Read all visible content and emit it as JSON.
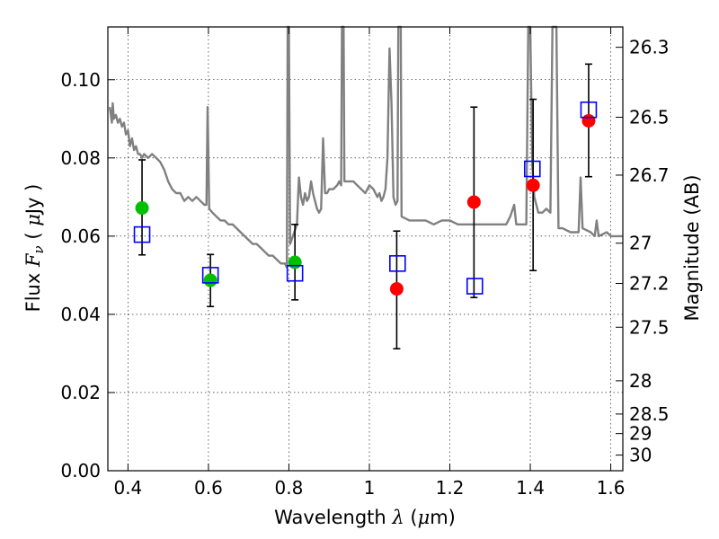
{
  "chart_data": {
    "type": "scatter",
    "title": "",
    "xlabel_parts": [
      "Wavelength  ",
      "λ",
      " (",
      "μ",
      "m)"
    ],
    "ylabel_parts": [
      "Flux  ",
      "F",
      "ν",
      "  ( ",
      "μ",
      "Jy )"
    ],
    "y2label": "Magnitude (AB)",
    "xlim": [
      0.35,
      1.63
    ],
    "ylim": [
      0.0,
      0.1135
    ],
    "xticks": [
      0.4,
      0.6,
      0.8,
      1.0,
      1.2,
      1.4,
      1.6
    ],
    "xtick_labels": [
      "0.4",
      "0.6",
      "0.8",
      "1",
      "1.2",
      "1.4",
      "1.6"
    ],
    "yticks": [
      0.0,
      0.02,
      0.04,
      0.06,
      0.08,
      0.1
    ],
    "ytick_labels": [
      "0.00",
      "0.02",
      "0.04",
      "0.06",
      "0.08",
      "0.10"
    ],
    "y2ticks": [
      {
        "flux": 0.1083,
        "label": "26.3"
      },
      {
        "flux": 0.0904,
        "label": "26.5"
      },
      {
        "flux": 0.0756,
        "label": "26.7"
      },
      {
        "flux": 0.0582,
        "label": "27"
      },
      {
        "flux": 0.0479,
        "label": "27.2"
      },
      {
        "flux": 0.0367,
        "label": "27.5"
      },
      {
        "flux": 0.023,
        "label": "28"
      },
      {
        "flux": 0.0145,
        "label": "28.5"
      },
      {
        "flux": 0.0095,
        "label": "29"
      },
      {
        "flux": 0.004,
        "label": "30"
      }
    ],
    "grid": true,
    "grid_style": "dotted",
    "model_spectrum": {
      "color": "#808080",
      "points": [
        [
          0.355,
          0.093
        ],
        [
          0.36,
          0.089
        ],
        [
          0.362,
          0.094
        ],
        [
          0.365,
          0.09
        ],
        [
          0.37,
          0.091
        ],
        [
          0.375,
          0.089
        ],
        [
          0.38,
          0.09
        ],
        [
          0.385,
          0.088
        ],
        [
          0.39,
          0.089
        ],
        [
          0.395,
          0.086
        ],
        [
          0.4,
          0.087
        ],
        [
          0.405,
          0.083
        ],
        [
          0.41,
          0.085
        ],
        [
          0.415,
          0.082
        ],
        [
          0.42,
          0.083
        ],
        [
          0.425,
          0.081
        ],
        [
          0.43,
          0.081
        ],
        [
          0.435,
          0.08
        ],
        [
          0.44,
          0.081
        ],
        [
          0.45,
          0.08
        ],
        [
          0.46,
          0.081
        ],
        [
          0.47,
          0.08
        ],
        [
          0.48,
          0.079
        ],
        [
          0.49,
          0.077
        ],
        [
          0.5,
          0.074
        ],
        [
          0.51,
          0.072
        ],
        [
          0.52,
          0.071
        ],
        [
          0.53,
          0.071
        ],
        [
          0.54,
          0.069
        ],
        [
          0.55,
          0.07
        ],
        [
          0.56,
          0.069
        ],
        [
          0.57,
          0.07
        ],
        [
          0.58,
          0.069
        ],
        [
          0.59,
          0.068
        ],
        [
          0.595,
          0.068
        ],
        [
          0.598,
          0.093
        ],
        [
          0.602,
          0.067
        ],
        [
          0.61,
          0.066
        ],
        [
          0.62,
          0.065
        ],
        [
          0.63,
          0.064
        ],
        [
          0.64,
          0.064
        ],
        [
          0.65,
          0.063
        ],
        [
          0.66,
          0.063
        ],
        [
          0.67,
          0.062
        ],
        [
          0.68,
          0.061
        ],
        [
          0.69,
          0.06
        ],
        [
          0.7,
          0.059
        ],
        [
          0.71,
          0.058
        ],
        [
          0.72,
          0.058
        ],
        [
          0.73,
          0.057
        ],
        [
          0.74,
          0.056
        ],
        [
          0.75,
          0.055
        ],
        [
          0.76,
          0.055
        ],
        [
          0.77,
          0.054
        ],
        [
          0.78,
          0.053
        ],
        [
          0.79,
          0.053
        ],
        [
          0.795,
          0.052
        ],
        [
          0.797,
          0.1135
        ],
        [
          0.8,
          0.1135
        ],
        [
          0.803,
          0.058
        ],
        [
          0.81,
          0.06
        ],
        [
          0.82,
          0.063
        ],
        [
          0.825,
          0.075
        ],
        [
          0.83,
          0.07
        ],
        [
          0.835,
          0.068
        ],
        [
          0.84,
          0.071
        ],
        [
          0.845,
          0.069
        ],
        [
          0.85,
          0.07
        ],
        [
          0.855,
          0.074
        ],
        [
          0.86,
          0.071
        ],
        [
          0.865,
          0.069
        ],
        [
          0.87,
          0.067
        ],
        [
          0.875,
          0.066
        ],
        [
          0.88,
          0.067
        ],
        [
          0.885,
          0.085
        ],
        [
          0.89,
          0.071
        ],
        [
          0.895,
          0.071
        ],
        [
          0.9,
          0.072
        ],
        [
          0.91,
          0.072
        ],
        [
          0.92,
          0.073
        ],
        [
          0.925,
          0.074
        ],
        [
          0.93,
          0.073
        ],
        [
          0.932,
          0.1135
        ],
        [
          0.936,
          0.1135
        ],
        [
          0.938,
          0.074
        ],
        [
          0.95,
          0.074
        ],
        [
          0.96,
          0.074
        ],
        [
          0.97,
          0.073
        ],
        [
          0.98,
          0.072
        ],
        [
          0.99,
          0.071
        ],
        [
          1.0,
          0.073
        ],
        [
          1.01,
          0.072
        ],
        [
          1.02,
          0.07
        ],
        [
          1.025,
          0.071
        ],
        [
          1.03,
          0.069
        ],
        [
          1.035,
          0.07
        ],
        [
          1.04,
          0.072
        ],
        [
          1.045,
          0.08
        ],
        [
          1.05,
          0.108
        ],
        [
          1.055,
          0.094
        ],
        [
          1.06,
          0.07
        ],
        [
          1.065,
          0.068
        ],
        [
          1.07,
          0.069
        ],
        [
          1.072,
          0.1135
        ],
        [
          1.078,
          0.1135
        ],
        [
          1.08,
          0.065
        ],
        [
          1.1,
          0.064
        ],
        [
          1.12,
          0.064
        ],
        [
          1.14,
          0.064
        ],
        [
          1.16,
          0.063
        ],
        [
          1.18,
          0.064
        ],
        [
          1.2,
          0.064
        ],
        [
          1.22,
          0.063
        ],
        [
          1.24,
          0.063
        ],
        [
          1.26,
          0.063
        ],
        [
          1.28,
          0.063
        ],
        [
          1.3,
          0.063
        ],
        [
          1.32,
          0.063
        ],
        [
          1.34,
          0.063
        ],
        [
          1.35,
          0.065
        ],
        [
          1.36,
          0.068
        ],
        [
          1.365,
          0.063
        ],
        [
          1.38,
          0.063
        ],
        [
          1.39,
          0.063
        ],
        [
          1.395,
          0.1135
        ],
        [
          1.4,
          0.1135
        ],
        [
          1.405,
          0.078
        ],
        [
          1.41,
          0.07
        ],
        [
          1.42,
          0.066
        ],
        [
          1.43,
          0.066
        ],
        [
          1.44,
          0.067
        ],
        [
          1.45,
          0.066
        ],
        [
          1.455,
          0.1135
        ],
        [
          1.465,
          0.1135
        ],
        [
          1.47,
          0.062
        ],
        [
          1.48,
          0.062
        ],
        [
          1.5,
          0.061
        ],
        [
          1.52,
          0.061
        ],
        [
          1.525,
          0.075
        ],
        [
          1.53,
          0.062
        ],
        [
          1.55,
          0.061
        ],
        [
          1.56,
          0.06
        ],
        [
          1.565,
          0.064
        ],
        [
          1.57,
          0.06
        ],
        [
          1.59,
          0.061
        ],
        [
          1.6,
          0.06
        ],
        [
          1.63,
          0.06
        ]
      ]
    },
    "model_photometry": {
      "marker": "square",
      "color": "#0000ff",
      "points": [
        [
          0.435,
          0.0604
        ],
        [
          0.605,
          0.05
        ],
        [
          0.815,
          0.0505
        ],
        [
          1.07,
          0.053
        ],
        [
          1.262,
          0.0472
        ],
        [
          1.405,
          0.0772
        ],
        [
          1.545,
          0.0923
        ]
      ]
    },
    "observations": [
      {
        "x": 0.435,
        "y": 0.0672,
        "lo": 0.0552,
        "hi": 0.0795,
        "color": "#00c000"
      },
      {
        "x": 0.605,
        "y": 0.0487,
        "lo": 0.042,
        "hi": 0.0553,
        "color": "#00c000"
      },
      {
        "x": 0.815,
        "y": 0.0533,
        "lo": 0.0437,
        "hi": 0.063,
        "color": "#00c000"
      },
      {
        "x": 1.068,
        "y": 0.0465,
        "lo": 0.0312,
        "hi": 0.0613,
        "color": "#ff0000"
      },
      {
        "x": 1.26,
        "y": 0.0687,
        "lo": 0.0443,
        "hi": 0.093,
        "color": "#ff0000"
      },
      {
        "x": 1.407,
        "y": 0.073,
        "lo": 0.0512,
        "hi": 0.095,
        "color": "#ff0000"
      },
      {
        "x": 1.545,
        "y": 0.0895,
        "lo": 0.0752,
        "hi": 0.104,
        "color": "#ff0000"
      }
    ]
  }
}
